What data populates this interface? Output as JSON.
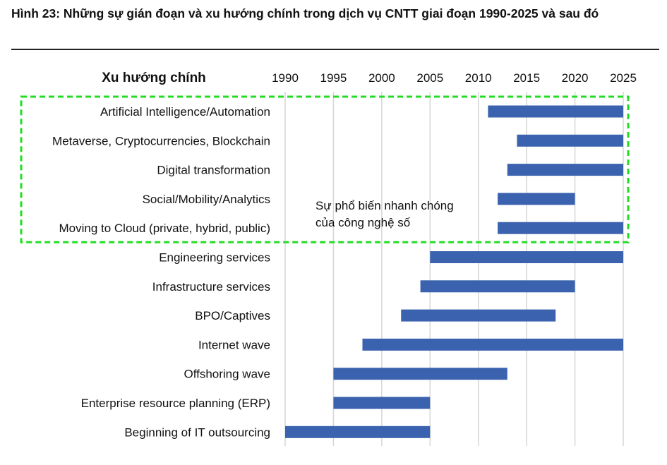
{
  "figure": {
    "title": "Hình 23: Những sự gián đoạn và xu hướng chính trong dịch vụ CNTT giai đoạn 1990-2025 và sau đó"
  },
  "chart_data": {
    "type": "bar",
    "orientation": "horizontal-range",
    "category_header": "Xu hướng chính",
    "xlim": [
      1990,
      2025
    ],
    "xticks": [
      "1990",
      "1995",
      "2000",
      "2005",
      "2010",
      "2015",
      "2020",
      "2025"
    ],
    "grid": true,
    "bar_color": "#3a62ae",
    "highlight_color": "#22dd22",
    "categories": [
      "Artificial Intelligence/Automation",
      "Metaverse, Cryptocurrencies, Blockchain",
      "Digital transformation",
      "Social/Mobility/Analytics",
      "Moving to Cloud (private, hybrid, public)",
      "Engineering services",
      "Infrastructure services",
      "BPO/Captives",
      "Internet wave",
      "Offshoring wave",
      "Enterprise resource planning (ERP)",
      "Beginning of IT outsourcing"
    ],
    "ranges": [
      [
        2011,
        2025
      ],
      [
        2014,
        2025
      ],
      [
        2013,
        2025
      ],
      [
        2012,
        2020
      ],
      [
        2012,
        2025
      ],
      [
        2005,
        2025
      ],
      [
        2004,
        2020
      ],
      [
        2002,
        2018
      ],
      [
        1998,
        2025
      ],
      [
        1995,
        2013
      ],
      [
        1995,
        2005
      ],
      [
        1990,
        2005
      ]
    ],
    "highlighted_categories": 5,
    "annotation": [
      "Sự phổ biến nhanh chóng",
      "của công nghệ số"
    ]
  }
}
